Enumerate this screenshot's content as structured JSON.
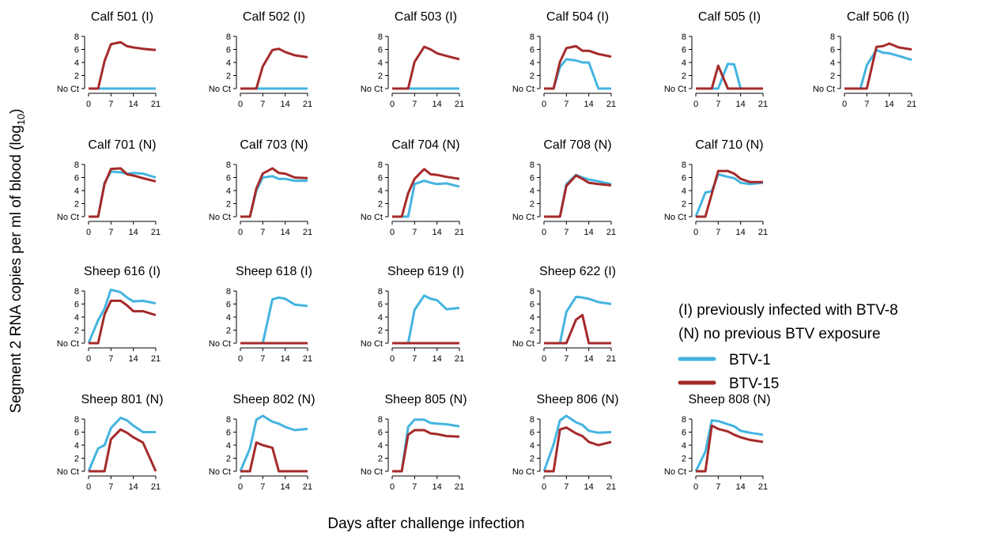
{
  "figure": {
    "ylabel_main": "Segment 2 RNA copies per ml of blood (log",
    "ylabel_sub": "10",
    "ylabel_close": ")",
    "xlabel": "Days after challenge infection"
  },
  "legend": {
    "notes": [
      "(I) previously infected with BTV-8",
      "(N) no previous BTV exposure"
    ],
    "entries": [
      {
        "label": "BTV-1",
        "color": "#44b4e0"
      },
      {
        "label": "BTV-15",
        "color": "#a52a2a"
      }
    ]
  },
  "chart_data": {
    "type": "line",
    "x": [
      0,
      3,
      5,
      7,
      10,
      12,
      14,
      17,
      21
    ],
    "xticks": [
      0,
      7,
      14,
      21
    ],
    "xlim": [
      0,
      21
    ],
    "ylim": [
      0,
      8
    ],
    "yticks": [
      {
        "v": 0,
        "t": "No Ct"
      },
      {
        "v": 2,
        "t": "2"
      },
      {
        "v": 4,
        "t": "4"
      },
      {
        "v": 6,
        "t": "6"
      },
      {
        "v": 8,
        "t": "8"
      }
    ],
    "series_names": [
      "BTV-1",
      "BTV-15"
    ],
    "colors": {
      "BTV-1": "#44b4e0",
      "BTV-15": "#a52a2a"
    },
    "panels": [
      {
        "title": "Calf 501 (I)",
        "btv1": [
          0,
          0,
          0,
          0,
          0,
          0,
          0,
          0,
          0
        ],
        "btv15": [
          0,
          0,
          4.2,
          6.8,
          7.1,
          6.5,
          6.3,
          6.1,
          5.9
        ]
      },
      {
        "title": "Calf 502 (I)",
        "btv1": [
          0,
          0,
          0,
          0,
          0,
          0,
          0,
          0,
          0
        ],
        "btv15": [
          0,
          0,
          0,
          3.4,
          5.9,
          6.1,
          5.6,
          5.1,
          4.8
        ]
      },
      {
        "title": "Calf 503 (I)",
        "btv1": [
          0,
          0,
          0,
          0,
          0,
          0,
          0,
          0,
          0
        ],
        "btv15": [
          0,
          0,
          0,
          4.1,
          6.4,
          6.0,
          5.4,
          5.0,
          4.5
        ]
      },
      {
        "title": "Calf 504 (I)",
        "btv1": [
          0,
          0,
          3.3,
          4.5,
          4.3,
          4.0,
          4.0,
          0,
          0
        ],
        "btv15": [
          0,
          0,
          4.1,
          6.2,
          6.5,
          5.8,
          5.8,
          5.3,
          4.9
        ]
      },
      {
        "title": "Calf 505 (I)",
        "btv1": [
          0,
          0,
          0,
          0,
          3.8,
          3.7,
          0,
          0,
          0
        ],
        "btv15": [
          0,
          0,
          0,
          3.5,
          0,
          0,
          0,
          0,
          0
        ]
      },
      {
        "title": "Calf 506 (I)",
        "btv1": [
          0,
          0,
          0,
          3.6,
          5.9,
          5.5,
          5.4,
          5.0,
          4.4
        ],
        "btv15": [
          0,
          0,
          0,
          0,
          6.4,
          6.5,
          6.9,
          6.3,
          6.0
        ]
      },
      {
        "title": "Calf 701 (N)",
        "btv1": [
          0,
          0,
          5.2,
          6.9,
          6.8,
          6.6,
          6.7,
          6.6,
          6.0
        ],
        "btv15": [
          0,
          0,
          5.0,
          7.3,
          7.4,
          6.5,
          6.3,
          5.9,
          5.4
        ]
      },
      {
        "title": "Calf 703 (N)",
        "btv1": [
          0,
          0,
          4.0,
          6.0,
          6.2,
          5.8,
          5.8,
          5.5,
          5.5
        ],
        "btv15": [
          0,
          0,
          4.3,
          6.6,
          7.4,
          6.7,
          6.6,
          6.0,
          5.9
        ]
      },
      {
        "title": "Calf 704 (N)",
        "btv1": [
          0,
          0,
          0,
          5.0,
          5.5,
          5.2,
          5.0,
          5.1,
          4.6
        ],
        "btv15": [
          0,
          0,
          3.6,
          5.8,
          7.3,
          6.5,
          6.4,
          6.1,
          5.8
        ]
      },
      {
        "title": "Calf 708 (N)",
        "btv1": [
          0,
          0,
          0,
          5.0,
          6.4,
          6.0,
          5.7,
          5.4,
          5.0
        ],
        "btv15": [
          0,
          0,
          0,
          4.7,
          6.3,
          5.8,
          5.2,
          5.0,
          4.8
        ]
      },
      {
        "title": "Calf 710 (N)",
        "btv1": [
          0,
          3.7,
          3.9,
          6.5,
          6.1,
          5.9,
          5.2,
          5.0,
          5.2
        ],
        "btv15": [
          0,
          0,
          3.5,
          7.0,
          7.0,
          6.6,
          5.8,
          5.3,
          5.3
        ]
      },
      {
        "title": "Sheep 616 (I)",
        "btv1": [
          0,
          3.5,
          5.3,
          8.2,
          7.8,
          7.0,
          6.4,
          6.5,
          6.1
        ],
        "btv15": [
          0,
          0,
          4.4,
          6.5,
          6.5,
          5.8,
          4.9,
          4.9,
          4.3
        ]
      },
      {
        "title": "Sheep 618 (I)",
        "btv1": [
          0,
          0,
          0,
          0,
          6.7,
          7.0,
          6.8,
          5.9,
          5.7
        ],
        "btv15": [
          0,
          0,
          0,
          0,
          0,
          0,
          0,
          0,
          0
        ]
      },
      {
        "title": "Sheep 619 (I)",
        "btv1": [
          0,
          0,
          0,
          5.1,
          7.3,
          6.8,
          6.6,
          5.2,
          5.4
        ],
        "btv15": [
          0,
          0,
          0,
          0,
          0,
          0,
          0,
          0,
          0
        ]
      },
      {
        "title": "Sheep 622 (I)",
        "btv1": [
          0,
          0,
          0,
          4.8,
          7.1,
          7.0,
          6.8,
          6.3,
          6.0
        ],
        "btv15": [
          0,
          0,
          0,
          0,
          3.6,
          4.3,
          0,
          0,
          0
        ]
      },
      {
        "title": "Sheep 801 (N)",
        "btv1": [
          0,
          3.5,
          4.0,
          6.6,
          8.2,
          7.8,
          7.0,
          6.0,
          6.0
        ],
        "btv15": [
          0,
          0,
          0,
          4.9,
          6.4,
          5.9,
          5.2,
          4.4,
          0
        ]
      },
      {
        "title": "Sheep 802 (N)",
        "btv1": [
          0,
          3.5,
          7.9,
          8.5,
          7.6,
          7.3,
          6.8,
          6.3,
          6.5
        ],
        "btv15": [
          0,
          0,
          4.4,
          4.0,
          3.6,
          0,
          0,
          0,
          0
        ]
      },
      {
        "title": "Sheep 805 (N)",
        "btv1": [
          0,
          0,
          6.8,
          7.9,
          7.9,
          7.4,
          7.3,
          7.2,
          6.9
        ],
        "btv15": [
          0,
          0,
          5.6,
          6.3,
          6.3,
          5.8,
          5.7,
          5.4,
          5.3
        ]
      },
      {
        "title": "Sheep 806 (N)",
        "btv1": [
          0,
          4.1,
          7.8,
          8.5,
          7.5,
          7.1,
          6.2,
          5.9,
          6.0
        ],
        "btv15": [
          0,
          0,
          6.4,
          6.7,
          5.8,
          5.4,
          4.5,
          4.0,
          4.5
        ]
      },
      {
        "title": "Sheep 808 (N)",
        "btv1": [
          0,
          3.0,
          7.8,
          7.7,
          7.2,
          6.9,
          6.2,
          5.9,
          5.6
        ],
        "btv15": [
          0,
          0,
          7.0,
          6.5,
          6.1,
          5.6,
          5.2,
          4.8,
          4.5
        ]
      }
    ]
  }
}
